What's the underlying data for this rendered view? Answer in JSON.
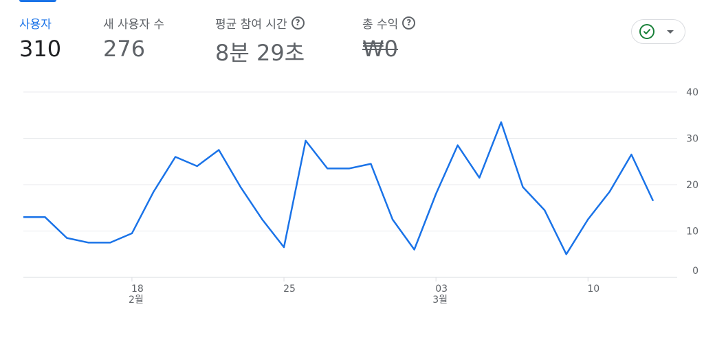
{
  "metrics": [
    {
      "label": "사용자",
      "value": "310",
      "active": true,
      "help": false
    },
    {
      "label": "새 사용자 수",
      "value": "276",
      "active": false,
      "help": false
    },
    {
      "label": "평균 참여 시간",
      "value": "8분 29초",
      "active": false,
      "help": true
    },
    {
      "label": "총 수익",
      "value": "₩0",
      "active": false,
      "help": true,
      "strike": true
    }
  ],
  "help_icon_glyph": "?",
  "status_dropdown": {
    "icon": "check-circle-icon",
    "caret": "caret-down-icon",
    "icon_color": "#188038"
  },
  "colors": {
    "accent": "#1a73e8",
    "line": "#1a73e8",
    "grid": "#e8eaed",
    "axis": "#dadce0"
  },
  "chart_data": {
    "type": "line",
    "series": [
      {
        "values": [
          13,
          13,
          8.5,
          7.5,
          7.5,
          9.5,
          18.5,
          26,
          24,
          27.5,
          19.5,
          12.5,
          6.5,
          29.5,
          23.5,
          23.5,
          24.5,
          12.5,
          6,
          18,
          28.5,
          21.5,
          33.5,
          19.5,
          14.5,
          5,
          12.5,
          18.5,
          26.5,
          16.5
        ]
      }
    ],
    "x_ticks": [
      {
        "index": 5,
        "label": "18",
        "sublabel": "2월"
      },
      {
        "index": 12,
        "label": "25",
        "sublabel": ""
      },
      {
        "index": 19,
        "label": "03",
        "sublabel": "3월"
      },
      {
        "index": 26,
        "label": "10",
        "sublabel": ""
      }
    ],
    "y_ticks": [
      0,
      10,
      20,
      30,
      40
    ],
    "ylim": [
      0,
      40
    ],
    "y_axis_side": "right",
    "grid": true
  }
}
